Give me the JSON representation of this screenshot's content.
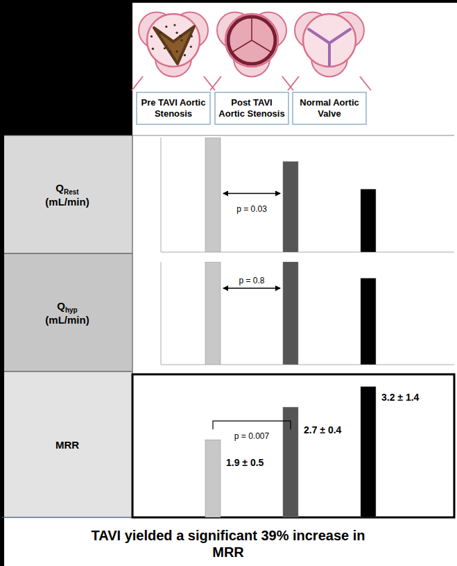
{
  "chart_data": [
    {
      "type": "bar",
      "title": "QRest (mL/min)",
      "categories": [
        "Pre TAVI Aortic Stenosis",
        "Post TAVI Aortic Stenosis",
        "Normal Aortic Valve"
      ],
      "values": [
        100,
        79,
        55
      ],
      "colors": [
        "#c8c8c8",
        "#555555",
        "#000000"
      ],
      "ylim": [
        0,
        100
      ],
      "tick_labels": false,
      "grid": false,
      "annotations": [
        "p = 0.03"
      ]
    },
    {
      "type": "bar",
      "title": "Qhyp (mL/min)",
      "categories": [
        null,
        null,
        null
      ],
      "values": [
        100,
        100,
        84
      ],
      "colors": [
        "#c8c8c8",
        "#555555",
        "#000000"
      ],
      "ylim": [
        0,
        100
      ],
      "tick_labels": false,
      "grid": false,
      "annotations": [
        "p = 0.8"
      ]
    },
    {
      "type": "bar",
      "title": "MRR",
      "categories": [
        null,
        null,
        null
      ],
      "values": [
        1.9,
        2.7,
        3.2
      ],
      "value_labels": [
        "1.9 ± 0.5",
        "2.7 ± 0.4",
        "3.2 ± 1.4"
      ],
      "colors": [
        "#c8c8c8",
        "#555555",
        "#000000"
      ],
      "ylim": [
        0,
        3.4
      ],
      "tick_labels": false,
      "grid": false,
      "data_labels": true,
      "annotations": [
        "p = 0.007"
      ]
    }
  ],
  "footer": "TAVI yielded a significant 39% increase in MRR"
}
